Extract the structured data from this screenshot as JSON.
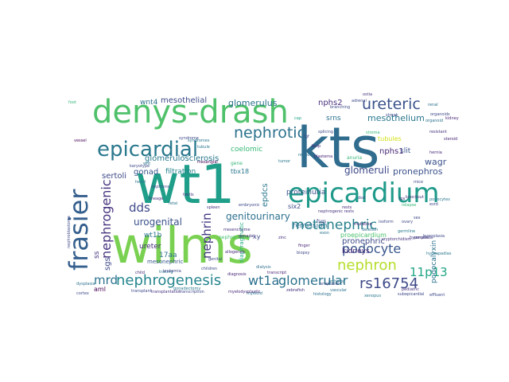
{
  "words": [
    {
      "text": "wilms",
      "color": "#7ad151"
    },
    {
      "text": "wt1",
      "color": "#1f9e89"
    },
    {
      "text": "kts",
      "color": "#2f6c8e"
    },
    {
      "text": "denys-drash",
      "color": "#4fc16b"
    },
    {
      "text": "epicardium",
      "color": "#1f9a8a"
    },
    {
      "text": "frasier",
      "color": "#355f8d"
    },
    {
      "text": "epicardial",
      "color": "#2a788e"
    },
    {
      "text": "nephrotic",
      "color": "#2c728e"
    },
    {
      "text": "ureteric",
      "color": "#3b528b"
    },
    {
      "text": "metanephric",
      "color": "#27808e"
    },
    {
      "text": "nephrogenesis",
      "color": "#25858e"
    },
    {
      "text": "podocyte",
      "color": "#39568c"
    },
    {
      "text": "nephron",
      "color": "#b5de2b"
    },
    {
      "text": "wt1a",
      "color": "#2d708e"
    },
    {
      "text": "glomerular",
      "color": "#2c728e"
    },
    {
      "text": "rs16754",
      "color": "#3e4a89"
    },
    {
      "text": "nephrogenic",
      "color": "#46327e"
    },
    {
      "text": "mesothelium",
      "color": "#2a788e"
    },
    {
      "text": "urogenital",
      "color": "#3b528b"
    },
    {
      "text": "genitourinary",
      "color": "#2d708e"
    },
    {
      "text": "glomeruli",
      "color": "#3e4989"
    },
    {
      "text": "dds",
      "color": "#3e4989"
    },
    {
      "text": "mrd",
      "color": "#2c728e"
    },
    {
      "text": "nephrin",
      "color": "#443983"
    },
    {
      "text": "11p13",
      "color": "#21a585"
    },
    {
      "text": "glomerulus",
      "color": "#2c728e"
    },
    {
      "text": "mesothelial",
      "color": "#3e4a89"
    },
    {
      "text": "nphs2",
      "color": "#472d7b"
    },
    {
      "text": "pronephros",
      "color": "#3b528b"
    },
    {
      "text": "pronephric",
      "color": "#3e4a89"
    },
    {
      "text": "wagr",
      "color": "#3b528b"
    },
    {
      "text": "nphs1",
      "color": "#482878"
    },
    {
      "text": "slit",
      "color": "#3b528b"
    },
    {
      "text": "wnt4",
      "color": "#2d708e"
    },
    {
      "text": "gonad",
      "color": "#39568c"
    },
    {
      "text": "sertoli",
      "color": "#3e4989"
    },
    {
      "text": "proteinuria",
      "color": "#3b528b"
    },
    {
      "text": "remission",
      "color": "#2c728e"
    },
    {
      "text": "glomerulosclerosis",
      "color": "#2a788e"
    },
    {
      "text": "filtration",
      "color": "#26828e"
    },
    {
      "text": "coelomic",
      "color": "#38b977"
    },
    {
      "text": "epdcs",
      "color": "#2a788e"
    },
    {
      "text": "wt1b",
      "color": "#2c728e"
    },
    {
      "text": "ureter",
      "color": "#472d7b"
    },
    {
      "text": "kidneys",
      "color": "#482878"
    },
    {
      "text": "podocalyxin",
      "color": "#2c728e"
    },
    {
      "text": "proepicardium",
      "color": "#4ac16d"
    },
    {
      "text": "tubules",
      "color": "#d2e21b"
    },
    {
      "text": "srns",
      "color": "#2c728e"
    },
    {
      "text": "tbx18",
      "color": "#2a788e"
    },
    {
      "text": "six2",
      "color": "#3e4989"
    },
    {
      "text": "aml",
      "color": "#440154"
    },
    {
      "text": "17aa",
      "color": "#2c728e"
    },
    {
      "text": "mesonephric",
      "color": "#38598c"
    },
    {
      "text": "diaphragmatic",
      "color": "#25ac82"
    },
    {
      "text": "sgs",
      "color": "#3e4989"
    },
    {
      "text": "ss",
      "color": "#46327e"
    },
    {
      "text": "xy",
      "color": "#3e4989"
    },
    {
      "text": "nephrectomy",
      "color": "#44bf70"
    },
    {
      "text": "fsgs",
      "color": "#3e4989"
    },
    {
      "text": "gene",
      "color": "#35b779"
    },
    {
      "text": "mesangial",
      "color": "#440154"
    },
    {
      "text": "anuria",
      "color": "#35b779"
    },
    {
      "text": "gonadal",
      "color": "#46337e"
    },
    {
      "text": "splicing",
      "color": "#3e4989"
    },
    {
      "text": "renal",
      "color": "#2c728e"
    },
    {
      "text": "kidney",
      "color": "#482878"
    },
    {
      "text": "stroma",
      "color": "#35b779"
    },
    {
      "text": "cortex",
      "color": "#3e4989"
    },
    {
      "text": "hypospadias",
      "color": "#2a788e"
    },
    {
      "text": "cryptorchidism",
      "color": "#46327e"
    },
    {
      "text": "mesenchyme",
      "color": "#46337e"
    },
    {
      "text": "tumor",
      "color": "#2a788e"
    },
    {
      "text": "nephroblastoma",
      "color": "#3e4989"
    },
    {
      "text": "blastema",
      "color": "#482878"
    },
    {
      "text": "cap",
      "color": "#20a386"
    },
    {
      "text": "foot",
      "color": "#35b779"
    },
    {
      "text": "branching",
      "color": "#3e4989"
    },
    {
      "text": "vessel",
      "color": "#440154"
    },
    {
      "text": "sex",
      "color": "#3e4989"
    },
    {
      "text": "testis",
      "color": "#46327e"
    },
    {
      "text": "ovary",
      "color": "#3e4989"
    },
    {
      "text": "heart",
      "color": "#2c728e"
    },
    {
      "text": "spleen",
      "color": "#46327e"
    },
    {
      "text": "dsd",
      "color": "#3e4989"
    },
    {
      "text": "zinc",
      "color": "#472d7b"
    },
    {
      "text": "finger",
      "color": "#482878"
    },
    {
      "text": "exon",
      "color": "#2c728e"
    },
    {
      "text": "isoform",
      "color": "#3e4989"
    },
    {
      "text": "germline",
      "color": "#2a788e"
    },
    {
      "text": "somatic",
      "color": "#3e4989"
    },
    {
      "text": "deletion",
      "color": "#2c728e"
    },
    {
      "text": "mutation",
      "color": "#482878"
    },
    {
      "text": "tubule",
      "color": "#2a788e"
    },
    {
      "text": "nephrons",
      "color": "#3e4989"
    },
    {
      "text": "vascular",
      "color": "#2c728e"
    },
    {
      "text": "pediatric",
      "color": "#46327e"
    },
    {
      "text": "child",
      "color": "#482878"
    },
    {
      "text": "children",
      "color": "#3e4989"
    },
    {
      "text": "relapse",
      "color": "#35b779"
    },
    {
      "text": "steroid",
      "color": "#482878"
    },
    {
      "text": "resistant",
      "color": "#46327e"
    },
    {
      "text": "syndrome",
      "color": "#3e4989"
    },
    {
      "text": "syndromes",
      "color": "#2a788e"
    },
    {
      "text": "genital",
      "color": "#3e4989"
    },
    {
      "text": "tracing",
      "color": "#2c728e"
    },
    {
      "text": "lineage",
      "color": "#46327e"
    },
    {
      "text": "embryonic",
      "color": "#3e4989"
    },
    {
      "text": "fetal",
      "color": "#2c728e"
    },
    {
      "text": "transcript",
      "color": "#482878"
    },
    {
      "text": "transcription",
      "color": "#3e4989"
    },
    {
      "text": "hyperplasia",
      "color": "#46327e"
    },
    {
      "text": "adrenal",
      "color": "#3e4989"
    },
    {
      "text": "gonadectomy",
      "color": "#2a788e"
    },
    {
      "text": "streak",
      "color": "#3e4989"
    },
    {
      "text": "karyotype",
      "color": "#3e4989"
    },
    {
      "text": "allogeneic",
      "color": "#482878"
    },
    {
      "text": "leukemia",
      "color": "#3e4989"
    },
    {
      "text": "myeloid",
      "color": "#2c728e"
    },
    {
      "text": "myelodysplastic",
      "color": "#482878"
    },
    {
      "text": "transplant",
      "color": "#3e4989"
    },
    {
      "text": "transplantation",
      "color": "#46327e"
    },
    {
      "text": "dialysis",
      "color": "#2c728e"
    },
    {
      "text": "esrd",
      "color": "#3e4989"
    },
    {
      "text": "diagnosis",
      "color": "#482878"
    },
    {
      "text": "biopsy",
      "color": "#3e4989"
    },
    {
      "text": "histology",
      "color": "#2c728e"
    },
    {
      "text": "anaplasia",
      "color": "#3e4989"
    },
    {
      "text": "nephrogenic rests",
      "color": "#46327e"
    },
    {
      "text": "rests",
      "color": "#482878"
    },
    {
      "text": "ortholog",
      "color": "#2c728e"
    },
    {
      "text": "zebrafish",
      "color": "#46327e"
    },
    {
      "text": "xenopus",
      "color": "#2a788e"
    },
    {
      "text": "mice",
      "color": "#3e4989"
    },
    {
      "text": "knockout",
      "color": "#46327e"
    },
    {
      "text": "organoid",
      "color": "#2c728e"
    },
    {
      "text": "organoids",
      "color": "#3e4989"
    },
    {
      "text": "ips",
      "color": "#482878"
    },
    {
      "text": "hypoplasia",
      "color": "#3e4989"
    },
    {
      "text": "dysplasia",
      "color": "#2c728e"
    },
    {
      "text": "hernia",
      "color": "#482878"
    },
    {
      "text": "effluent",
      "color": "#3e4989"
    },
    {
      "text": "subepicardial",
      "color": "#3e4989"
    },
    {
      "text": "podocytes",
      "color": "#2a788e"
    },
    {
      "text": "ostia",
      "color": "#46327e"
    },
    {
      "text": "retinoic",
      "color": "#2c728e"
    },
    {
      "text": "bmp",
      "color": "#482878"
    },
    {
      "text": "fgf",
      "color": "#3e4989"
    },
    {
      "text": "wnt",
      "color": "#2c728e"
    }
  ]
}
